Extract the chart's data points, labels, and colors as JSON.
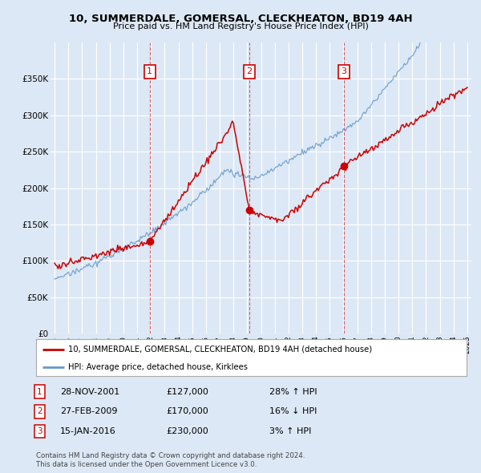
{
  "title": "10, SUMMERDALE, GOMERSAL, CLECKHEATON, BD19 4AH",
  "subtitle": "Price paid vs. HM Land Registry's House Price Index (HPI)",
  "red_label": "10, SUMMERDALE, GOMERSAL, CLECKHEATON, BD19 4AH (detached house)",
  "blue_label": "HPI: Average price, detached house, Kirklees",
  "footer1": "Contains HM Land Registry data © Crown copyright and database right 2024.",
  "footer2": "This data is licensed under the Open Government Licence v3.0.",
  "sales": [
    {
      "num": 1,
      "date": "28-NOV-2001",
      "year": 2001.91,
      "price": 127000,
      "pct": "28%",
      "dir": "↑"
    },
    {
      "num": 2,
      "date": "27-FEB-2009",
      "year": 2009.16,
      "price": 170000,
      "pct": "16%",
      "dir": "↓"
    },
    {
      "num": 3,
      "date": "15-JAN-2016",
      "year": 2016.04,
      "price": 230000,
      "pct": "3%",
      "dir": "↑"
    }
  ],
  "xlim": [
    1994.7,
    2025.3
  ],
  "ylim": [
    0,
    400000
  ],
  "yticks": [
    0,
    50000,
    100000,
    150000,
    200000,
    250000,
    300000,
    350000
  ],
  "ylabels": [
    "£0",
    "£50K",
    "£100K",
    "£150K",
    "£200K",
    "£250K",
    "£300K",
    "£350K"
  ],
  "background_color": "#dce8f5",
  "plot_bg": "#dce8f5",
  "grid_color": "#ffffff",
  "red_color": "#cc0000",
  "blue_color": "#6699cc",
  "marker_y": 360000,
  "hatch_start": 2025.0
}
